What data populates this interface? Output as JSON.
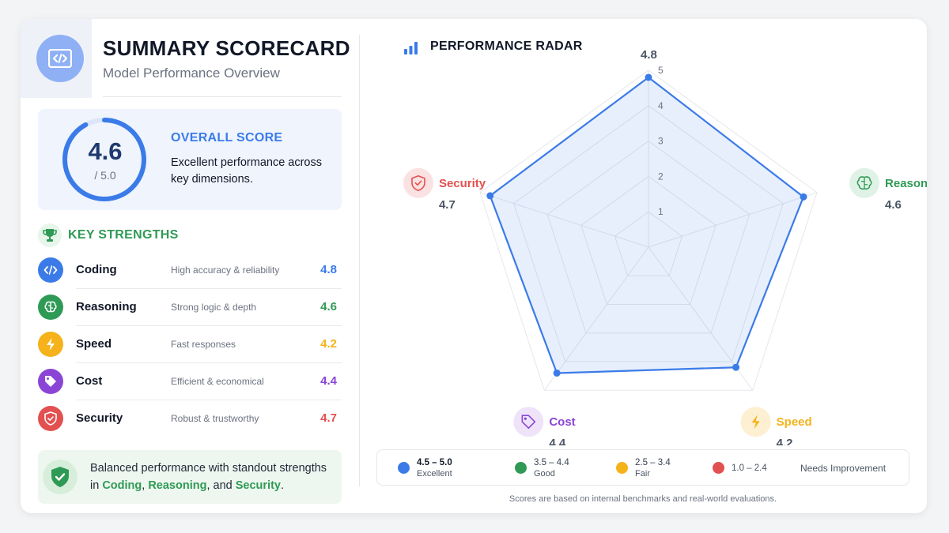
{
  "header": {
    "title": "SUMMARY SCORECARD",
    "subtitle": "Model Performance Overview"
  },
  "overall": {
    "score": "4.6",
    "max": "/ 5.0",
    "score_value": 4.6,
    "score_max": 5.0,
    "label": "OVERALL SCORE",
    "description": "Excellent performance across key dimensions."
  },
  "strengths": {
    "title": "KEY STRENGTHS",
    "items": [
      {
        "name": "Coding",
        "desc": "High accuracy & reliability",
        "value": "4.8",
        "color": "#3b7be8",
        "icon": "code-icon"
      },
      {
        "name": "Reasoning",
        "desc": "Strong logic & depth",
        "value": "4.6",
        "color": "#2f9a55",
        "icon": "brain-icon"
      },
      {
        "name": "Speed",
        "desc": "Fast responses",
        "value": "4.2",
        "color": "#f5b21a",
        "icon": "lightning-icon"
      },
      {
        "name": "Cost",
        "desc": "Efficient & economical",
        "value": "4.4",
        "color": "#8b45d6",
        "icon": "tag-icon"
      },
      {
        "name": "Security",
        "desc": "Robust & trustworthy",
        "value": "4.7",
        "color": "#e35050",
        "icon": "shield-icon"
      }
    ]
  },
  "summary": {
    "prefix": "Balanced performance with standout strengths in ",
    "h1": "Coding",
    "sep1": ", ",
    "h2": "Reasoning",
    "sep2": ", and ",
    "h3": "Security",
    "suffix": "."
  },
  "radar": {
    "title": "PERFORMANCE RADAR"
  },
  "chart_data": {
    "type": "radar",
    "title": "PERFORMANCE RADAR",
    "axes": [
      "Coding",
      "Reasoning",
      "Speed",
      "Cost",
      "Security"
    ],
    "values": [
      4.8,
      4.6,
      4.2,
      4.4,
      4.7
    ],
    "value_labels": [
      "4.8",
      "4.6",
      "4.2",
      "4.4",
      "4.7"
    ],
    "axis_colors": [
      "#3b7be8",
      "#2f9a55",
      "#f5b21a",
      "#8b45d6",
      "#e35050"
    ],
    "axis_icons": [
      "code-icon",
      "brain-icon",
      "lightning-icon",
      "tag-icon",
      "shield-icon"
    ],
    "range": [
      0,
      5
    ],
    "ticks": [
      "1",
      "2",
      "3",
      "4",
      "5"
    ],
    "series_color": "#3b7be8",
    "grid": true
  },
  "legend": {
    "items": [
      {
        "range": "4.5 – 5.0",
        "label": "Excellent",
        "color": "#3b7be8"
      },
      {
        "range": "3.5 – 4.4",
        "label": "Good",
        "color": "#2f9a55"
      },
      {
        "range": "2.5 – 3.4",
        "label": "Fair",
        "color": "#f5b21a"
      },
      {
        "range": "1.0 – 2.4",
        "label": "",
        "color": "#e35050"
      }
    ],
    "needs_improvement": "Needs Improvement"
  },
  "footnote": "Scores are based on internal benchmarks and real-world evaluations."
}
